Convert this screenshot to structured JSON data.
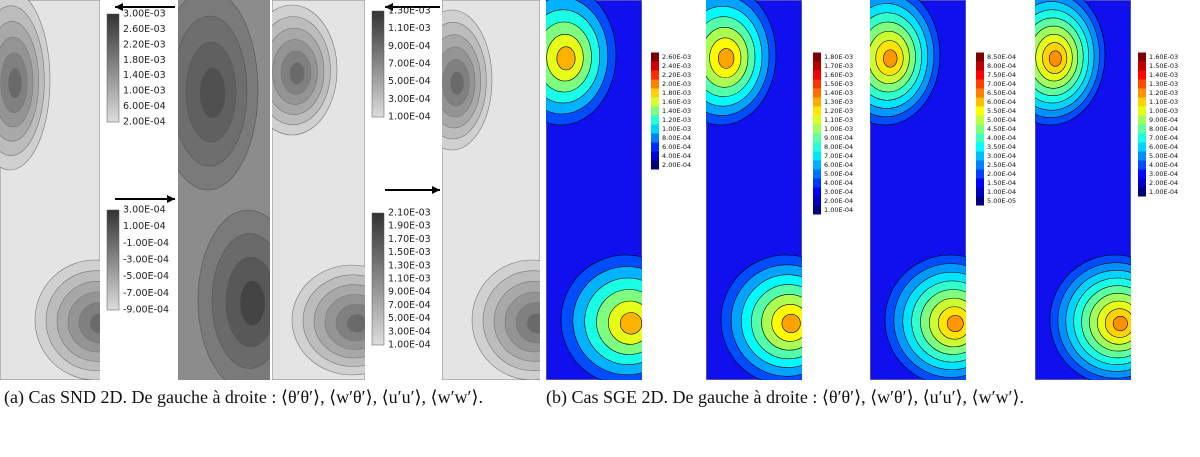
{
  "panel_a": {
    "colorbars": [
      {
        "labels": [
          "3.00E-03",
          "2.60E-03",
          "2.20E-03",
          "1.80E-03",
          "1.40E-03",
          "1.00E-03",
          "6.00E-04",
          "2.00E-04"
        ]
      },
      {
        "labels": [
          "3.00E-04",
          "1.00E-04",
          "-1.00E-04",
          "-3.00E-04",
          "-5.00E-04",
          "-7.00E-04",
          "-9.00E-04"
        ]
      },
      {
        "labels": [
          "1.30E-03",
          "1.10E-03",
          "9.00E-04",
          "7.00E-04",
          "5.00E-04",
          "3.00E-04",
          "1.00E-04"
        ]
      },
      {
        "labels": [
          "2.10E-03",
          "1.90E-03",
          "1.70E-03",
          "1.50E-03",
          "1.30E-03",
          "1.10E-03",
          "9.00E-04",
          "7.00E-04",
          "5.00E-04",
          "3.00E-04",
          "1.00E-04"
        ]
      }
    ],
    "caption": "(a) Cas SND 2D. De gauche à droite : ⟨θ′θ′⟩, ⟨w′θ′⟩, ⟨u′u′⟩, ⟨w′w′⟩."
  },
  "panel_b": {
    "colorbars": [
      {
        "labels": [
          "2.60E-03",
          "2.40E-03",
          "2.20E-03",
          "2.00E-03",
          "1.80E-03",
          "1.60E-03",
          "1.40E-03",
          "1.20E-03",
          "1.00E-03",
          "8.00E-04",
          "6.00E-04",
          "4.00E-04",
          "2.00E-04"
        ]
      },
      {
        "labels": [
          "1.80E-03",
          "1.70E-03",
          "1.60E-03",
          "1.50E-03",
          "1.40E-03",
          "1.30E-03",
          "1.20E-03",
          "1.10E-03",
          "1.00E-03",
          "9.00E-04",
          "8.00E-04",
          "7.00E-04",
          "6.00E-04",
          "5.00E-04",
          "4.00E-04",
          "3.00E-04",
          "2.00E-04",
          "1.00E-04"
        ]
      },
      {
        "labels": [
          "8.50E-04",
          "8.00E-04",
          "7.50E-04",
          "7.00E-04",
          "6.50E-04",
          "6.00E-04",
          "5.50E-04",
          "5.00E-04",
          "4.50E-04",
          "4.00E-04",
          "3.50E-04",
          "3.00E-04",
          "2.50E-04",
          "2.00E-04",
          "1.50E-04",
          "1.00E-04",
          "5.00E-05"
        ]
      },
      {
        "labels": [
          "1.60E-03",
          "1.50E-03",
          "1.40E-03",
          "1.30E-03",
          "1.20E-03",
          "1.10E-03",
          "1.00E-03",
          "9.00E-04",
          "8.00E-04",
          "7.00E-04",
          "6.00E-04",
          "5.00E-04",
          "4.00E-04",
          "3.00E-04",
          "2.00E-04",
          "1.00E-04"
        ]
      }
    ],
    "caption": "(b) Cas SGE 2D. De gauche à droite : ⟨θ′θ′⟩, ⟨w′θ′⟩, ⟨u′u′⟩, ⟨w′w′⟩."
  }
}
